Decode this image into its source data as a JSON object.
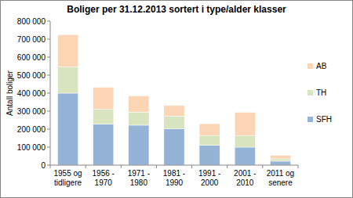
{
  "chart_data": {
    "type": "bar",
    "stacked": true,
    "title": "Boliger per 31.12.2013 sortert i type/alder klasser",
    "y_label": "Antall boliger",
    "categories": [
      "1955 og tidligere",
      "1956 - 1970",
      "1971 - 1980",
      "1981 - 1990",
      "1991 - 2000",
      "2001 - 2010",
      "2011 og senere"
    ],
    "series": [
      {
        "name": "SFH",
        "color": "#95b3d7",
        "values": [
          400000,
          228000,
          222000,
          203000,
          110000,
          100000,
          22000
        ]
      },
      {
        "name": "TH",
        "color": "#d7e4bd",
        "values": [
          145000,
          82000,
          72000,
          70000,
          55000,
          65000,
          13000
        ]
      },
      {
        "name": "AB",
        "color": "#fcd5b5",
        "values": [
          180000,
          122000,
          90000,
          58000,
          65000,
          128000,
          20000
        ]
      }
    ],
    "ylim": [
      0,
      800000
    ],
    "yticks": [
      0,
      {
        "value": 100000,
        "label": "100 000"
      },
      {
        "value": 200000,
        "label": "200 000"
      },
      {
        "value": 300000,
        "label": "300 000"
      },
      {
        "value": 400000,
        "label": "400 000"
      },
      {
        "value": 500000,
        "label": "500 000"
      },
      {
        "value": 600000,
        "label": "600 000"
      },
      {
        "value": 700000,
        "label": "700 000"
      },
      {
        "value": 800000,
        "label": "800 000"
      }
    ],
    "grid": false,
    "legend": "right"
  }
}
